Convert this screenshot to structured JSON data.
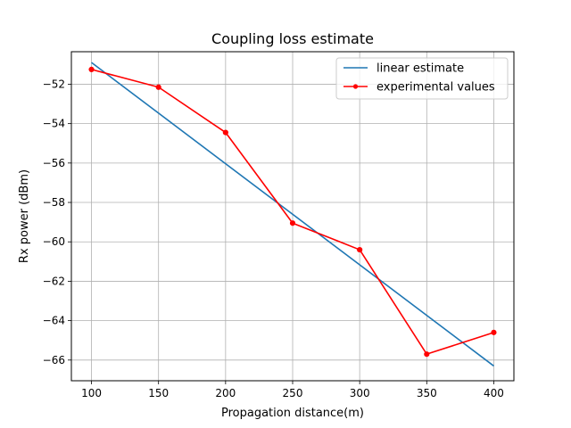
{
  "chart_data": {
    "type": "line",
    "title": "Coupling loss estimate",
    "xlabel": "Propagation distance(m)",
    "ylabel": "Rx power (dBm)",
    "xlim": [
      85,
      415
    ],
    "ylim": [
      -67.05,
      -50.35
    ],
    "xticks": [
      100,
      150,
      200,
      250,
      300,
      350,
      400
    ],
    "yticks": [
      -66,
      -64,
      -62,
      -60,
      -58,
      -56,
      -54,
      -52
    ],
    "grid": true,
    "legend_position": "top-right",
    "series": [
      {
        "name": "linear estimate",
        "color": "#1f77b4",
        "marker": "none",
        "x": [
          100,
          400
        ],
        "y": [
          -50.9,
          -66.3
        ]
      },
      {
        "name": "experimental values",
        "color": "#ff0000",
        "marker": "circle",
        "x": [
          100,
          150,
          200,
          250,
          300,
          350,
          400
        ],
        "y": [
          -51.25,
          -52.15,
          -54.45,
          -59.05,
          -60.4,
          -65.7,
          -64.6
        ]
      }
    ]
  }
}
